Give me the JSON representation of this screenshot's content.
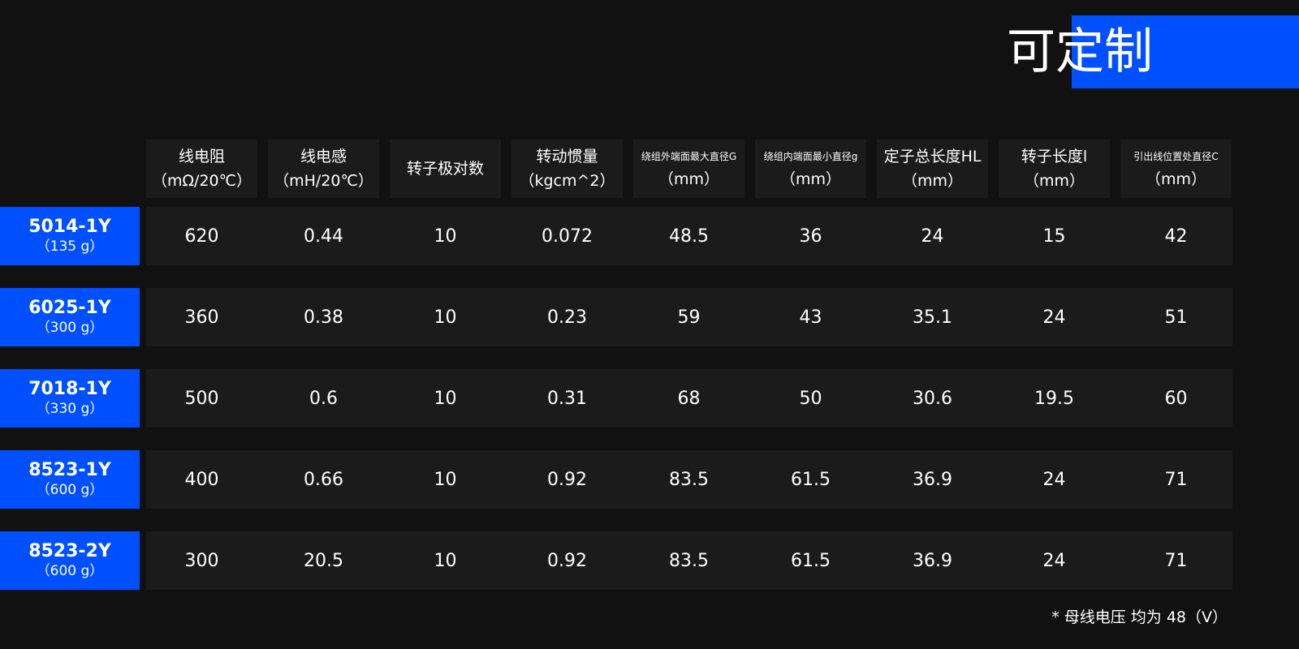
{
  "title": "可定制",
  "colors": {
    "accent": "#0050ff",
    "background": "#111111",
    "cell": "#1b1b1b"
  },
  "headers": [
    {
      "line1": "线电阻",
      "line2": "（mΩ/20℃）",
      "small": false
    },
    {
      "line1": "线电感",
      "line2": "（mH/20℃）",
      "small": false
    },
    {
      "line1": "转子极对数",
      "line2": "",
      "small": false
    },
    {
      "line1": "转动惯量",
      "line2": "（kgcm^2）",
      "small": false
    },
    {
      "line1": "绕组外端面最大直径G",
      "line2": "（mm）",
      "small": true
    },
    {
      "line1": "绕组内端面最小直径g",
      "line2": "（mm）",
      "small": true
    },
    {
      "line1": "定子总长度HL",
      "line2": "（mm）",
      "small": false
    },
    {
      "line1": "转子长度l",
      "line2": "（mm）",
      "small": false
    },
    {
      "line1": "引出线位置处直径C",
      "line2": "（mm）",
      "small": true
    }
  ],
  "rows": [
    {
      "model": "5014-1Y",
      "weight": "（135 g）",
      "values": [
        "620",
        "0.44",
        "10",
        "0.072",
        "48.5",
        "36",
        "24",
        "15",
        "42"
      ]
    },
    {
      "model": "6025-1Y",
      "weight": "（300 g）",
      "values": [
        "360",
        "0.38",
        "10",
        "0.23",
        "59",
        "43",
        "35.1",
        "24",
        "51"
      ]
    },
    {
      "model": "7018-1Y",
      "weight": "（330 g）",
      "values": [
        "500",
        "0.6",
        "10",
        "0.31",
        "68",
        "50",
        "30.6",
        "19.5",
        "60"
      ]
    },
    {
      "model": "8523-1Y",
      "weight": "（600 g）",
      "values": [
        "400",
        "0.66",
        "10",
        "0.92",
        "83.5",
        "61.5",
        "36.9",
        "24",
        "71"
      ]
    },
    {
      "model": "8523-2Y",
      "weight": "（600 g）",
      "values": [
        "300",
        "20.5",
        "10",
        "0.92",
        "83.5",
        "61.5",
        "36.9",
        "24",
        "71"
      ]
    }
  ],
  "note": "* 母线电压  均为 48（V）"
}
